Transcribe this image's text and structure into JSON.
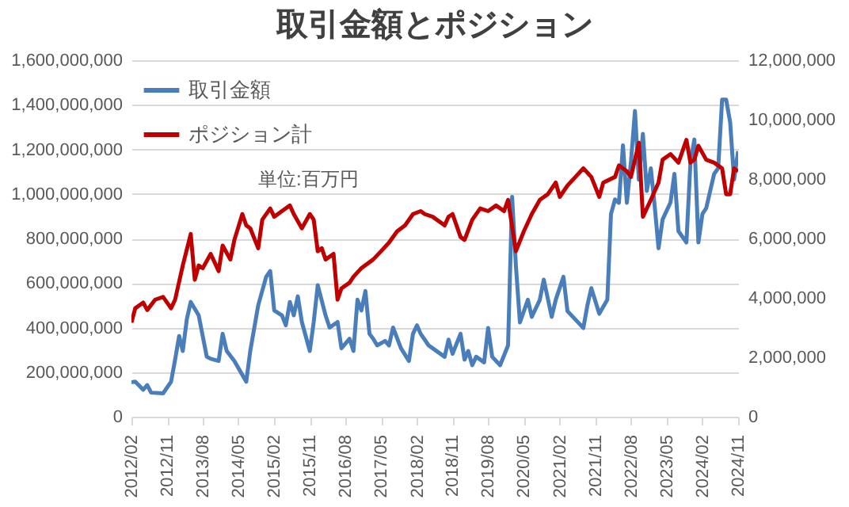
{
  "chart_data": {
    "type": "line",
    "title": "取引金額とポジション",
    "annotations": [
      "単位:百万円"
    ],
    "xlim": [
      "2012-02",
      "2024-11"
    ],
    "xticks": [
      {
        "value": "2012-02",
        "label": "2012/02"
      },
      {
        "value": "2012-11",
        "label": "2012/11"
      },
      {
        "value": "2013-08",
        "label": "2013/08"
      },
      {
        "value": "2014-05",
        "label": "2014/05"
      },
      {
        "value": "2015-02",
        "label": "2015/02"
      },
      {
        "value": "2015-11",
        "label": "2015/11"
      },
      {
        "value": "2016-08",
        "label": "2016/08"
      },
      {
        "value": "2017-05",
        "label": "2017/05"
      },
      {
        "value": "2018-02",
        "label": "2018/02"
      },
      {
        "value": "2018-11",
        "label": "2018/11"
      },
      {
        "value": "2019-08",
        "label": "2019/08"
      },
      {
        "value": "2020-05",
        "label": "2020/05"
      },
      {
        "value": "2021-02",
        "label": "2021/02"
      },
      {
        "value": "2021-11",
        "label": "2021/11"
      },
      {
        "value": "2022-08",
        "label": "2022/08"
      },
      {
        "value": "2023-05",
        "label": "2023/05"
      },
      {
        "value": "2024-02",
        "label": "2024/02"
      },
      {
        "value": "2024-11",
        "label": "2024/11"
      }
    ],
    "ylim": [
      0,
      1600000000
    ],
    "yticks": [
      0,
      {
        "value": 200000000,
        "label": "200,000,000"
      },
      {
        "value": 400000000,
        "label": "400,000,000"
      },
      {
        "value": 600000000,
        "label": "600,000,000"
      },
      {
        "value": 800000000,
        "label": "800,000,000"
      },
      {
        "value": 1000000000,
        "label": "1,000,000,000"
      },
      {
        "value": 1200000000,
        "label": "1,200,000,000"
      },
      {
        "value": 1400000000,
        "label": "1,400,000,000"
      },
      {
        "value": 1600000000,
        "label": "1,600,000,000"
      }
    ],
    "y2lim": [
      0,
      12000000
    ],
    "y2ticks": [
      0,
      {
        "value": 2000000,
        "label": "2,000,000"
      },
      {
        "value": 4000000,
        "label": "4,000,000"
      },
      {
        "value": 6000000,
        "label": "6,000,000"
      },
      {
        "value": 8000000,
        "label": "8,000,000"
      },
      {
        "value": 10000000,
        "label": "10,000,000"
      },
      {
        "value": 12000000,
        "label": "12,000,000"
      }
    ],
    "grid": "y",
    "legend": "top left",
    "series": [
      {
        "name": "取引金額",
        "color": "#4a7ebb",
        "x": [
          "2012-02",
          "2012-03",
          "2012-05",
          "2012-06",
          "2012-07",
          "2012-10",
          "2012-12",
          "2013-01",
          "2013-02",
          "2013-03",
          "2013-04",
          "2013-05",
          "2013-07",
          "2013-09",
          "2013-10",
          "2013-12",
          "2014-01",
          "2014-02",
          "2014-04",
          "2014-07",
          "2014-08",
          "2014-10",
          "2014-12",
          "2015-01",
          "2015-02",
          "2015-04",
          "2015-05",
          "2015-06",
          "2015-07",
          "2015-08",
          "2015-09",
          "2015-11",
          "2015-12",
          "2016-01",
          "2016-03",
          "2016-04",
          "2016-06",
          "2016-07",
          "2016-09",
          "2016-10",
          "2016-11",
          "2016-12",
          "2017-01",
          "2017-02",
          "2017-03",
          "2017-04",
          "2017-06",
          "2017-07",
          "2017-08",
          "2017-10",
          "2017-12",
          "2018-01",
          "2018-02",
          "2018-03",
          "2018-05",
          "2018-06",
          "2018-09",
          "2018-10",
          "2018-11",
          "2019-01",
          "2019-02",
          "2019-03",
          "2019-04",
          "2019-05",
          "2019-07",
          "2019-08",
          "2019-09",
          "2019-11",
          "2020-01",
          "2020-02",
          "2020-03",
          "2020-04",
          "2020-06",
          "2020-07",
          "2020-09",
          "2020-10",
          "2020-12",
          "2021-01",
          "2021-03",
          "2021-04",
          "2021-06",
          "2021-08",
          "2021-09",
          "2021-10",
          "2021-12",
          "2022-02",
          "2022-03",
          "2022-04",
          "2022-05",
          "2022-06",
          "2022-07",
          "2022-08",
          "2022-09",
          "2022-10",
          "2022-11",
          "2022-12",
          "2023-01",
          "2023-02",
          "2023-03",
          "2023-04",
          "2023-06",
          "2023-07",
          "2023-08",
          "2023-10",
          "2023-11",
          "2023-12",
          "2024-01",
          "2024-02",
          "2024-03",
          "2024-05",
          "2024-06",
          "2024-07",
          "2024-08",
          "2024-09",
          "2024-10",
          "2024-11"
        ],
        "values": [
          155000000,
          157000000,
          121000000,
          142000000,
          108000000,
          105000000,
          157000000,
          256000000,
          362000000,
          295000000,
          438000000,
          515000000,
          455000000,
          269000000,
          260000000,
          250000000,
          372000000,
          295000000,
          250000000,
          157000000,
          295000000,
          500000000,
          628000000,
          654000000,
          477000000,
          455000000,
          410000000,
          515000000,
          455000000,
          540000000,
          425000000,
          295000000,
          425000000,
          590000000,
          455000000,
          400000000,
          425000000,
          307000000,
          350000000,
          295000000,
          525000000,
          477000000,
          564000000,
          372000000,
          350000000,
          320000000,
          340000000,
          320000000,
          400000000,
          307000000,
          250000000,
          372000000,
          410000000,
          372000000,
          320000000,
          307000000,
          269000000,
          346000000,
          282000000,
          372000000,
          256000000,
          295000000,
          231000000,
          269000000,
          244000000,
          398000000,
          269000000,
          231000000,
          320000000,
          987000000,
          679000000,
          423000000,
          525000000,
          448000000,
          525000000,
          615000000,
          448000000,
          525000000,
          628000000,
          474000000,
          436000000,
          398000000,
          500000000,
          577000000,
          462000000,
          525000000,
          910000000,
          975000000,
          960000000,
          1218000000,
          960000000,
          1141000000,
          1372000000,
          1064000000,
          1269000000,
          1013000000,
          1115000000,
          936000000,
          756000000,
          885000000,
          962000000,
          1090000000,
          833000000,
          782000000,
          1141000000,
          1244000000,
          782000000,
          910000000,
          936000000,
          1090000000,
          1115000000,
          1423000000,
          1423000000,
          1321000000,
          1064000000,
          1192000000
        ]
      },
      {
        "name": "ポジション計",
        "color": "#c00000",
        "axis": "y2",
        "x": [
          "2012-02",
          "2012-03",
          "2012-05",
          "2012-06",
          "2012-08",
          "2012-10",
          "2012-12",
          "2013-01",
          "2013-03",
          "2013-05",
          "2013-06",
          "2013-07",
          "2013-08",
          "2013-10",
          "2013-11",
          "2013-12",
          "2014-01",
          "2014-03",
          "2014-04",
          "2014-06",
          "2014-07",
          "2014-08",
          "2014-10",
          "2014-11",
          "2015-01",
          "2015-02",
          "2015-04",
          "2015-06",
          "2015-07",
          "2015-09",
          "2015-11",
          "2015-12",
          "2016-01",
          "2016-02",
          "2016-03",
          "2016-05",
          "2016-06",
          "2016-07",
          "2016-09",
          "2016-10",
          "2016-12",
          "2017-03",
          "2017-05",
          "2017-07",
          "2017-09",
          "2017-11",
          "2018-01",
          "2018-03",
          "2018-04",
          "2018-06",
          "2018-09",
          "2018-10",
          "2018-11",
          "2019-01",
          "2019-02",
          "2019-04",
          "2019-06",
          "2019-08",
          "2019-10",
          "2019-12",
          "2020-01",
          "2020-03",
          "2020-05",
          "2020-07",
          "2020-09",
          "2020-11",
          "2021-01",
          "2021-02",
          "2021-04",
          "2021-06",
          "2021-08",
          "2021-10",
          "2021-12",
          "2022-01",
          "2022-04",
          "2022-05",
          "2022-07",
          "2022-08",
          "2022-10",
          "2022-11",
          "2023-01",
          "2023-03",
          "2023-04",
          "2023-06",
          "2023-08",
          "2023-10",
          "2023-11",
          "2023-12",
          "2024-01",
          "2024-03",
          "2024-05",
          "2024-07",
          "2024-08",
          "2024-09",
          "2024-10",
          "2024-11"
        ],
        "values": [
          3170000,
          3650000,
          3840000,
          3590000,
          3940000,
          4030000,
          3650000,
          3940000,
          5090000,
          6150000,
          4610000,
          5090000,
          5000000,
          5480000,
          5190000,
          4900000,
          5760000,
          5290000,
          5950000,
          6820000,
          6440000,
          6340000,
          5670000,
          6630000,
          7010000,
          6730000,
          6920000,
          7110000,
          6820000,
          6340000,
          6820000,
          6630000,
          5570000,
          5670000,
          5290000,
          5480000,
          3940000,
          4320000,
          4510000,
          4710000,
          5000000,
          5290000,
          5570000,
          5860000,
          6240000,
          6440000,
          6820000,
          6920000,
          6820000,
          6730000,
          6440000,
          6730000,
          6820000,
          6050000,
          5950000,
          6630000,
          7010000,
          6920000,
          7110000,
          6920000,
          7300000,
          5570000,
          6240000,
          6820000,
          7300000,
          7490000,
          7880000,
          7400000,
          7780000,
          8070000,
          8360000,
          8070000,
          7400000,
          7880000,
          8070000,
          8460000,
          8260000,
          8070000,
          9220000,
          6730000,
          7300000,
          7880000,
          8650000,
          8840000,
          8550000,
          9320000,
          8550000,
          8650000,
          9120000,
          8650000,
          8550000,
          8360000,
          7490000,
          7490000,
          8360000,
          8260000
        ]
      }
    ]
  }
}
